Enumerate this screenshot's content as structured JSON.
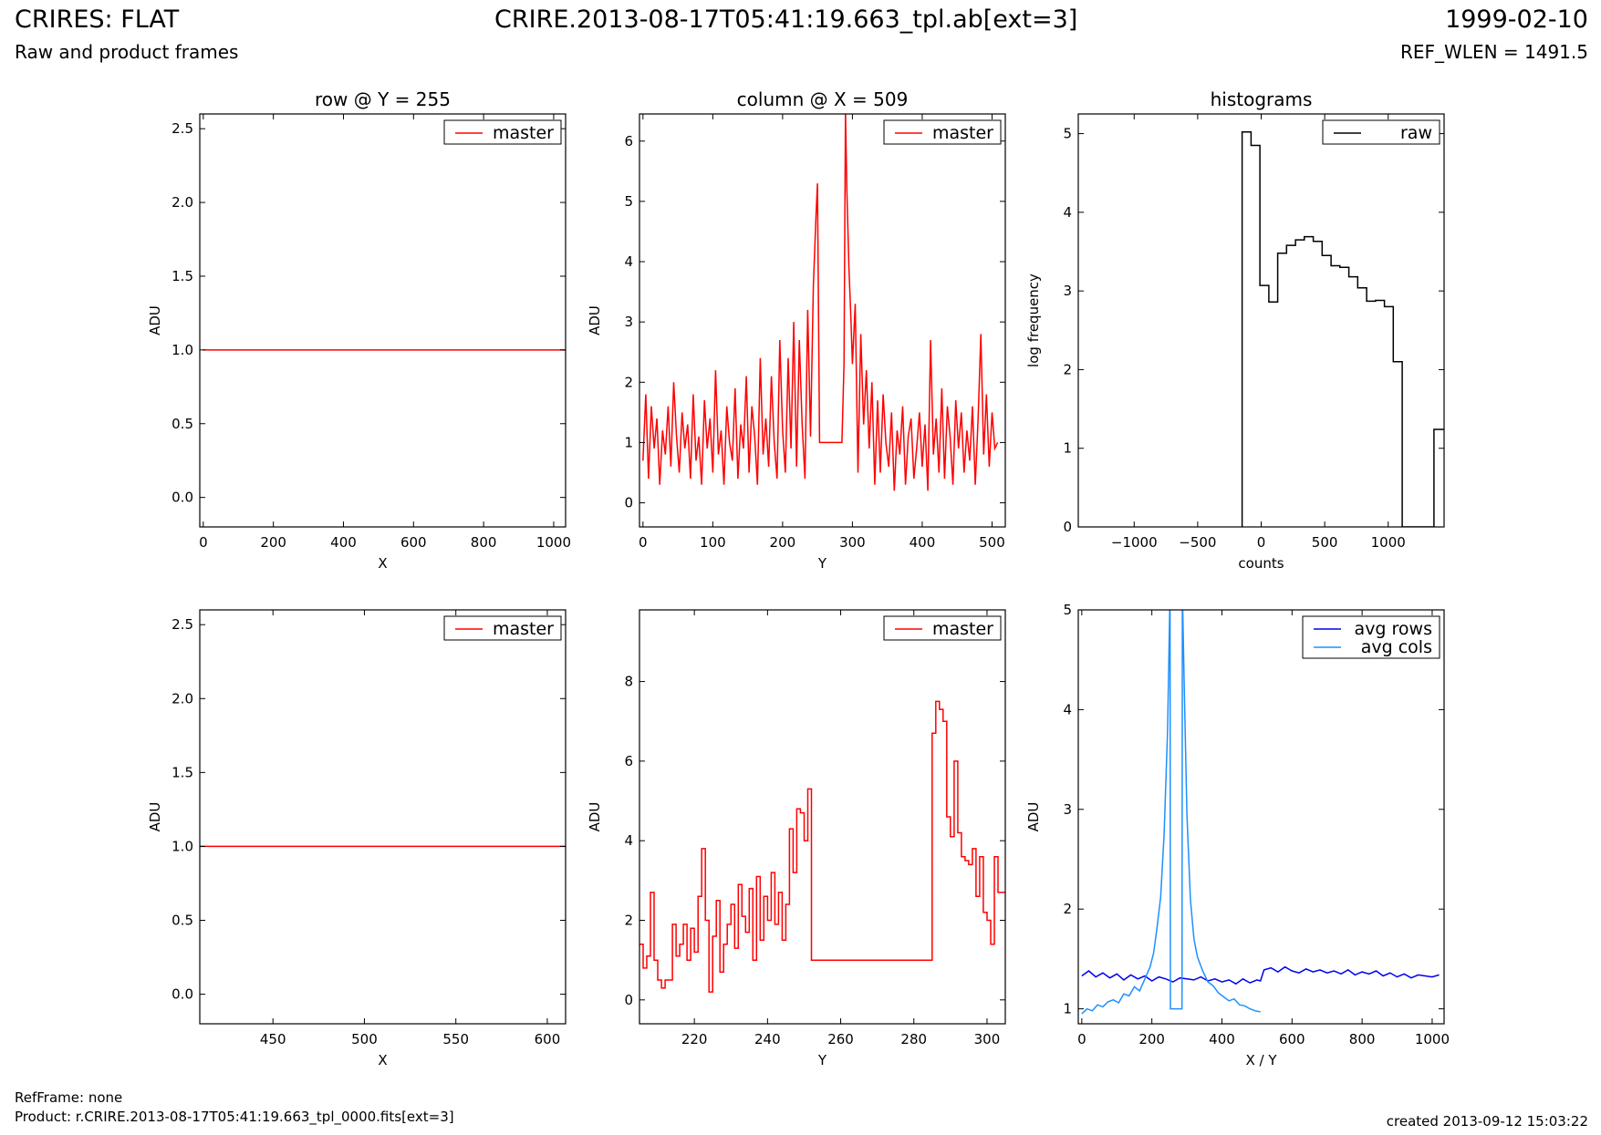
{
  "header": {
    "title": "CRIRES: FLAT",
    "subtitle": "Raw and product frames",
    "file": "CRIRE.2013-08-17T05:41:19.663_tpl.ab[ext=3]",
    "date": "1999-02-10",
    "ref_wlen": "REF_WLEN = 1491.5"
  },
  "footer": {
    "refframe": "RefFrame: none",
    "product": "Product: r.CRIRE.2013-08-17T05:41:19.663_tpl_0000.fits[ext=3]",
    "created": "created 2013-09-12 15:03:22"
  },
  "colors": {
    "master": "#ff0000",
    "raw": "#000000",
    "avg_rows": "#0000ee",
    "avg_cols": "#1e90ff"
  },
  "chart_data": [
    {
      "type": "line",
      "title": "row @ Y = 255",
      "xlabel": "X",
      "ylabel": "ADU",
      "xlim": [
        -10,
        1034
      ],
      "ylim": [
        -0.2,
        2.6
      ],
      "xticks": [
        "0",
        "200",
        "400",
        "600",
        "800",
        "1000"
      ],
      "yticks": [
        "0.0",
        "0.5",
        "1.0",
        "1.5",
        "2.0",
        "2.5"
      ],
      "legend": "upper-right",
      "series": [
        {
          "name": "master",
          "color": "#ff0000",
          "x": [
            0,
            1034
          ],
          "y": [
            1.0,
            1.0
          ]
        }
      ]
    },
    {
      "type": "line",
      "title": "column @ X = 509",
      "xlabel": "Y",
      "ylabel": "ADU",
      "xlim": [
        -5,
        519
      ],
      "ylim": [
        -0.4,
        6.45
      ],
      "xticks": [
        "0",
        "100",
        "200",
        "300",
        "400",
        "500"
      ],
      "yticks": [
        "0",
        "1",
        "2",
        "3",
        "4",
        "5",
        "6"
      ],
      "legend": "upper-right",
      "series": [
        {
          "name": "master",
          "color": "#ff0000",
          "x": [
            0,
            4,
            8,
            12,
            16,
            20,
            24,
            28,
            32,
            36,
            40,
            44,
            48,
            52,
            56,
            60,
            64,
            68,
            72,
            76,
            80,
            84,
            88,
            92,
            96,
            100,
            104,
            108,
            112,
            116,
            120,
            124,
            128,
            132,
            136,
            140,
            144,
            148,
            152,
            156,
            160,
            164,
            168,
            172,
            176,
            180,
            184,
            188,
            192,
            196,
            200,
            204,
            208,
            212,
            216,
            220,
            224,
            228,
            232,
            236,
            240,
            244,
            248,
            250,
            253,
            285,
            288,
            290,
            292,
            295,
            298,
            300,
            304,
            308,
            312,
            316,
            320,
            324,
            328,
            332,
            336,
            340,
            344,
            348,
            352,
            356,
            360,
            364,
            368,
            372,
            376,
            380,
            384,
            388,
            392,
            396,
            400,
            404,
            408,
            412,
            416,
            420,
            424,
            428,
            432,
            436,
            440,
            444,
            448,
            452,
            456,
            460,
            464,
            468,
            472,
            476,
            480,
            484,
            488,
            492,
            496,
            500,
            504,
            508
          ],
          "y": [
            0.7,
            1.8,
            0.4,
            1.6,
            0.9,
            1.4,
            0.3,
            1.2,
            0.8,
            1.6,
            0.6,
            2.0,
            1.1,
            0.5,
            1.5,
            0.9,
            1.3,
            0.4,
            1.8,
            0.7,
            1.1,
            0.3,
            1.7,
            0.9,
            1.4,
            0.5,
            2.2,
            0.8,
            1.2,
            0.3,
            1.6,
            1.0,
            0.7,
            1.9,
            0.4,
            1.3,
            0.9,
            2.1,
            0.5,
            1.6,
            1.1,
            0.3,
            2.4,
            0.8,
            1.4,
            0.6,
            2.1,
            1.0,
            0.4,
            2.7,
            1.2,
            0.5,
            2.4,
            0.9,
            3.0,
            0.6,
            2.7,
            1.3,
            0.4,
            3.2,
            1.1,
            3.6,
            4.8,
            5.3,
            1.0,
            1.0,
            2.3,
            6.5,
            5.2,
            3.9,
            3.0,
            2.3,
            3.3,
            0.5,
            2.8,
            1.3,
            2.2,
            0.9,
            2.0,
            0.3,
            1.7,
            0.5,
            1.8,
            1.0,
            0.6,
            1.5,
            0.2,
            1.2,
            0.8,
            1.6,
            0.3,
            1.1,
            1.4,
            0.4,
            0.9,
            1.5,
            0.6,
            1.3,
            0.2,
            2.7,
            0.8,
            1.4,
            0.5,
            1.9,
            0.4,
            1.6,
            1.1,
            0.3,
            1.7,
            0.9,
            1.5,
            0.5,
            1.2,
            0.7,
            1.6,
            0.3,
            1.4,
            2.8,
            0.8,
            1.8,
            0.6,
            1.5,
            0.9,
            1.0
          ]
        }
      ]
    },
    {
      "type": "line",
      "title": "histograms",
      "xlabel": "counts",
      "ylabel": "log frequency",
      "xlim": [
        -1440,
        1440
      ],
      "ylim": [
        0,
        5.25
      ],
      "xticks": [
        "−1000",
        "−500",
        "0",
        "500",
        "1000"
      ],
      "yticks": [
        "0",
        "1",
        "2",
        "3",
        "4",
        "5"
      ],
      "legend": "upper-right",
      "series": [
        {
          "name": "raw",
          "color": "#000000",
          "x": [
            -150,
            -150,
            -80,
            -80,
            -10,
            -10,
            60,
            60,
            130,
            130,
            200,
            200,
            270,
            270,
            340,
            340,
            410,
            410,
            480,
            480,
            550,
            550,
            620,
            620,
            690,
            690,
            760,
            760,
            830,
            830,
            900,
            900,
            970,
            970,
            1040,
            1040,
            1110,
            1110,
            1360,
            1360,
            1440
          ],
          "y": [
            0,
            5.02,
            5.02,
            4.85,
            4.85,
            3.07,
            3.07,
            2.86,
            2.86,
            3.48,
            3.48,
            3.58,
            3.58,
            3.65,
            3.65,
            3.69,
            3.69,
            3.63,
            3.63,
            3.45,
            3.45,
            3.32,
            3.32,
            3.3,
            3.3,
            3.18,
            3.18,
            3.04,
            3.04,
            2.87,
            2.87,
            2.88,
            2.88,
            2.8,
            2.8,
            2.1,
            2.1,
            0,
            0,
            1.24,
            1.24
          ]
        }
      ]
    },
    {
      "type": "line",
      "title": "",
      "xlabel": "X",
      "ylabel": "ADU",
      "xlim": [
        410,
        610
      ],
      "ylim": [
        -0.2,
        2.6
      ],
      "xticks": [
        "450",
        "500",
        "550",
        "600"
      ],
      "yticks": [
        "0.0",
        "0.5",
        "1.0",
        "1.5",
        "2.0",
        "2.5"
      ],
      "legend": "upper-right",
      "series": [
        {
          "name": "master",
          "color": "#ff0000",
          "x": [
            410,
            610
          ],
          "y": [
            1.0,
            1.0
          ]
        }
      ]
    },
    {
      "type": "line",
      "title": "",
      "xlabel": "Y",
      "ylabel": "ADU",
      "xlim": [
        205,
        305
      ],
      "ylim": [
        -0.6,
        9.8
      ],
      "xticks": [
        "220",
        "240",
        "260",
        "280",
        "300"
      ],
      "yticks": [
        "0",
        "2",
        "4",
        "6",
        "8"
      ],
      "legend": "upper-right",
      "step": true,
      "series": [
        {
          "name": "master",
          "color": "#ff0000",
          "x": [
            205,
            206,
            207,
            208,
            209,
            210,
            211,
            212,
            213,
            214,
            215,
            216,
            217,
            218,
            219,
            220,
            221,
            222,
            223,
            224,
            225,
            226,
            227,
            228,
            229,
            230,
            231,
            232,
            233,
            234,
            235,
            236,
            237,
            238,
            239,
            240,
            241,
            242,
            243,
            244,
            245,
            246,
            247,
            248,
            249,
            250,
            251,
            252,
            253,
            285,
            286,
            287,
            288,
            289,
            290,
            291,
            292,
            293,
            294,
            295,
            296,
            297,
            298,
            299,
            300,
            301,
            302,
            303,
            304,
            305
          ],
          "y": [
            1.4,
            0.8,
            1.1,
            2.7,
            1.0,
            0.5,
            0.3,
            0.5,
            0.5,
            1.9,
            1.1,
            1.4,
            1.9,
            1.0,
            1.8,
            1.2,
            2.6,
            3.8,
            2.0,
            0.2,
            1.6,
            2.5,
            0.7,
            1.4,
            1.9,
            2.4,
            1.3,
            2.9,
            2.1,
            1.7,
            2.8,
            1.0,
            3.1,
            1.5,
            2.6,
            2.0,
            3.2,
            1.9,
            2.7,
            1.5,
            2.4,
            4.3,
            3.2,
            4.8,
            4.7,
            4.0,
            5.3,
            1.0,
            1.0,
            6.7,
            7.5,
            7.3,
            7.0,
            4.6,
            4.1,
            6.0,
            4.2,
            3.6,
            3.5,
            3.4,
            3.8,
            2.6,
            3.6,
            2.2,
            2.0,
            1.4,
            3.6,
            2.7,
            2.7,
            2.7
          ]
        }
      ]
    },
    {
      "type": "line",
      "title": "",
      "xlabel": "X / Y",
      "ylabel": "ADU",
      "xlim": [
        -10,
        1034
      ],
      "ylim": [
        0.85,
        5.0
      ],
      "xticks": [
        "0",
        "200",
        "400",
        "600",
        "800",
        "1000"
      ],
      "yticks": [
        "1",
        "2",
        "3",
        "4",
        "5"
      ],
      "legend": "upper-right",
      "series": [
        {
          "name": "avg rows",
          "color": "#0000ee",
          "x": [
            0,
            20,
            40,
            60,
            80,
            100,
            120,
            140,
            160,
            180,
            200,
            220,
            240,
            260,
            280,
            300,
            320,
            340,
            360,
            380,
            400,
            420,
            440,
            460,
            480,
            500,
            510,
            520,
            540,
            560,
            580,
            600,
            620,
            640,
            660,
            680,
            700,
            720,
            740,
            760,
            780,
            800,
            820,
            840,
            860,
            880,
            900,
            920,
            940,
            960,
            980,
            1000,
            1020
          ],
          "y": [
            1.33,
            1.38,
            1.32,
            1.36,
            1.31,
            1.35,
            1.29,
            1.34,
            1.3,
            1.33,
            1.28,
            1.32,
            1.3,
            1.27,
            1.31,
            1.3,
            1.29,
            1.32,
            1.28,
            1.3,
            1.27,
            1.29,
            1.25,
            1.3,
            1.26,
            1.29,
            1.28,
            1.39,
            1.41,
            1.37,
            1.42,
            1.38,
            1.36,
            1.4,
            1.37,
            1.39,
            1.36,
            1.38,
            1.35,
            1.39,
            1.34,
            1.37,
            1.35,
            1.38,
            1.33,
            1.36,
            1.32,
            1.35,
            1.31,
            1.34,
            1.33,
            1.32,
            1.34
          ]
        },
        {
          "name": "avg cols",
          "color": "#1e90ff",
          "x": [
            0,
            15,
            30,
            45,
            60,
            75,
            90,
            105,
            120,
            135,
            150,
            165,
            180,
            195,
            205,
            215,
            225,
            235,
            245,
            252,
            253,
            270,
            286,
            287,
            292,
            300,
            310,
            320,
            330,
            345,
            360,
            375,
            390,
            405,
            420,
            435,
            450,
            465,
            480,
            495,
            510
          ],
          "y": [
            0.95,
            1.0,
            0.98,
            1.04,
            1.02,
            1.07,
            1.09,
            1.06,
            1.15,
            1.13,
            1.22,
            1.18,
            1.3,
            1.42,
            1.56,
            1.82,
            2.12,
            2.75,
            3.8,
            5.2,
            1.0,
            1.0,
            1.0,
            5.2,
            4.3,
            2.95,
            2.1,
            1.7,
            1.52,
            1.38,
            1.27,
            1.23,
            1.16,
            1.12,
            1.08,
            1.1,
            1.04,
            1.03,
            1.0,
            0.98,
            0.97
          ]
        }
      ]
    }
  ]
}
